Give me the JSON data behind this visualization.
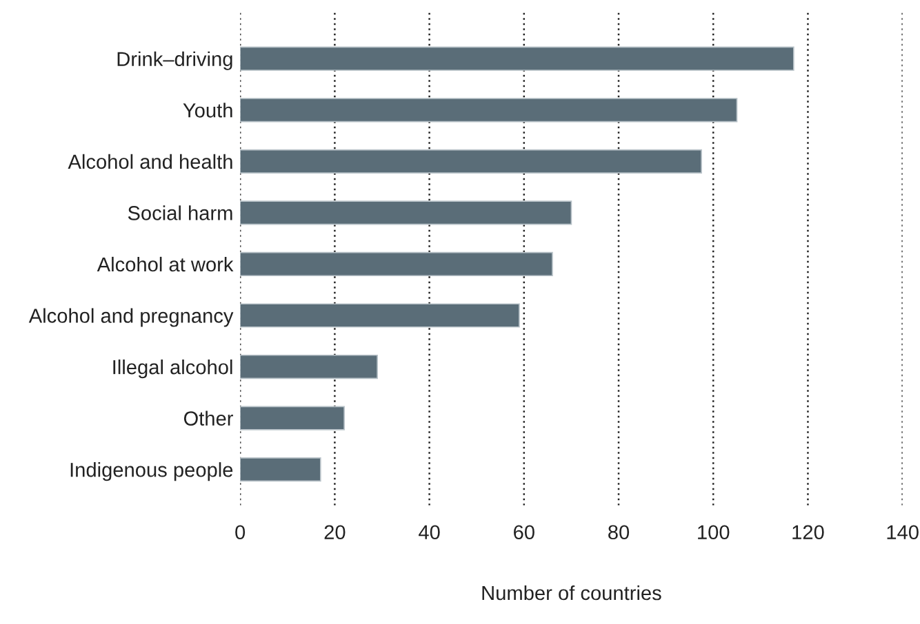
{
  "chart_data": {
    "type": "bar",
    "orientation": "horizontal",
    "xlabel": "Number of countries",
    "categories": [
      "Drink–driving",
      "Youth",
      "Alcohol and health",
      "Social harm",
      "Alcohol at work",
      "Alcohol and pregnancy",
      "Illegal alcohol",
      "Other",
      "Indigenous people"
    ],
    "values": [
      117,
      105,
      97.5,
      70,
      66,
      59,
      29,
      22,
      17
    ],
    "color": "#5a6d78",
    "xlim": [
      0,
      140
    ],
    "xticks": [
      0,
      20,
      40,
      60,
      80,
      100,
      120,
      140
    ],
    "grid": "x",
    "legend": false
  }
}
